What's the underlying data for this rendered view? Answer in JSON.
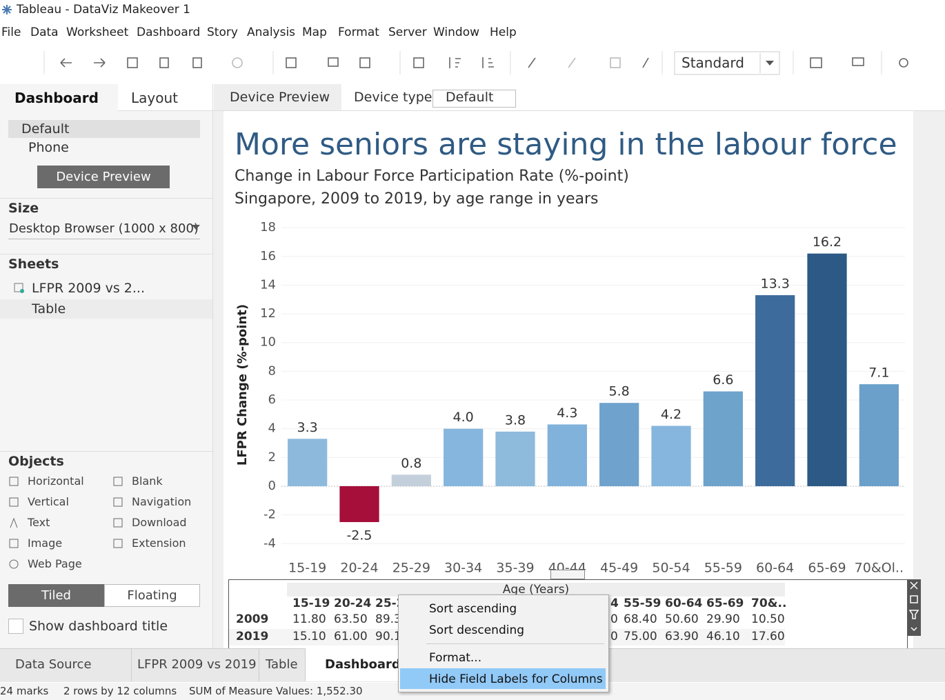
{
  "window": {
    "title": "Tableau - DataViz Makeover 1"
  },
  "menu": [
    "File",
    "Data",
    "Worksheet",
    "Dashboard",
    "Story",
    "Analysis",
    "Map",
    "Format",
    "Server",
    "Window",
    "Help"
  ],
  "toolbar": {
    "view_mode": "Standard"
  },
  "left_panel": {
    "tabs": [
      "Dashboard",
      "Layout"
    ],
    "devices": [
      "Default",
      "Phone"
    ],
    "device_preview_button": "Device Preview",
    "size_heading": "Size",
    "size_value": "Desktop Browser (1000 x 800)",
    "sheets_heading": "Sheets",
    "sheets": [
      "LFPR 2009 vs 2...",
      "Table"
    ],
    "objects_heading": "Objects",
    "objects": [
      "Horizontal",
      "Blank",
      "Vertical",
      "Navigation",
      "Text",
      "Download",
      "Image",
      "Extension",
      "Web Page"
    ],
    "layout_modes": [
      "Tiled",
      "Floating"
    ],
    "show_title": "Show dashboard title"
  },
  "device_bar": {
    "tab": "Device Preview",
    "device_type_label": "Device type",
    "device_type_value": "Default"
  },
  "chart_data": {
    "type": "bar",
    "title": "More seniors are staying in the labour force",
    "subtitle": [
      "Change in Labour Force Participation Rate (%-point)",
      "Singapore, 2009 to 2019, by age range in years"
    ],
    "y_label": "LFPR Change (%-point)",
    "categories": [
      "15-19",
      "20-24",
      "25-29",
      "30-34",
      "35-39",
      "40-44",
      "45-49",
      "50-54",
      "55-59",
      "60-64",
      "65-69",
      "70&Ol.."
    ],
    "values": [
      3.3,
      -2.5,
      0.8,
      4.0,
      3.8,
      4.3,
      5.8,
      4.2,
      6.6,
      13.3,
      16.2,
      7.1
    ],
    "value_labels": [
      "3.3",
      "-2.5",
      "0.8",
      "4.0",
      "3.8",
      "4.3",
      "5.8",
      "4.2",
      "6.6",
      "13.3",
      "16.2",
      "7.1"
    ],
    "colors": [
      "#8dbadc",
      "#a50f3a",
      "#c3d0db",
      "#86b6dd",
      "#8ebadc",
      "#80b2db",
      "#6fa2cc",
      "#86b6dd",
      "#6ea3cc",
      "#3d6b9c",
      "#2c5986",
      "#6aa0ca"
    ],
    "ylim": [
      -4.9,
      18.2
    ],
    "yticks": [
      -4,
      -2,
      0,
      2,
      4,
      6,
      8,
      10,
      12,
      14,
      16,
      18
    ],
    "grid": true
  },
  "table": {
    "title": "Age (Years)",
    "columns": [
      "15-19",
      "20-24",
      "25-2",
      "4",
      "55-59",
      "60-64",
      "65-69",
      "70&.."
    ],
    "rows": [
      [
        "2009",
        "11.80",
        "63.50",
        "89.3",
        "0",
        "68.40",
        "50.60",
        "29.90",
        "10.50"
      ],
      [
        "2019",
        "15.10",
        "61.00",
        "90.1",
        "0",
        "75.00",
        "63.90",
        "46.10",
        "17.60"
      ]
    ]
  },
  "context_menu": [
    "Sort ascending",
    "Sort descending",
    "Format...",
    "Hide Field Labels for Columns"
  ],
  "sheet_tabs": [
    "Data Source",
    "LFPR 2009 vs 2019",
    "Table",
    "Dashboard 1"
  ],
  "status_bar": [
    "24 marks",
    "2 rows by 12 columns",
    "SUM of Measure Values: 1,552.30"
  ]
}
